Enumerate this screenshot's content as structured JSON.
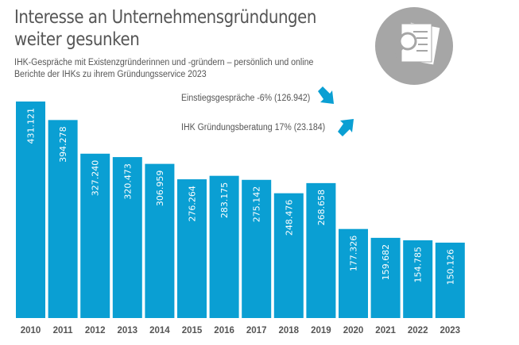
{
  "header": {
    "title_line1": "Interesse an Unternehmensgründungen",
    "title_line2": "weiter gesunken",
    "subtitle_line1": "IHK-Gespräche mit Existenzgründerinnen und -gründern – persönlich und online",
    "subtitle_line2": "Berichte der IHKs zu ihrem Gründungsservice 2023"
  },
  "annotations": [
    {
      "text": "Einstiegsgespräche -6% (126.942)",
      "trend": "down",
      "icon": "arrow-down-right-icon"
    },
    {
      "text": "IHK Gründungsberatung 17% (23.184)",
      "trend": "up",
      "icon": "arrow-up-right-icon"
    }
  ],
  "logo_icon": "document-magnifier-icon",
  "colors": {
    "bar": "#0a9fd3",
    "text": "#555555",
    "circle": "#a6a6a6"
  },
  "chart_data": {
    "type": "bar",
    "title": "",
    "xlabel": "",
    "ylabel": "",
    "grid": false,
    "categories": [
      "2010",
      "2011",
      "2012",
      "2013",
      "2014",
      "2015",
      "2016",
      "2017",
      "2018",
      "2019",
      "2020",
      "2021",
      "2022",
      "2023"
    ],
    "values": [
      431121,
      394278,
      327240,
      320473,
      306959,
      276264,
      283175,
      275142,
      248476,
      268658,
      177326,
      159682,
      154785,
      150126
    ],
    "labels": [
      "431.121",
      "394.278",
      "327.240",
      "320.473",
      "306.959",
      "276.264",
      "283.175",
      "275.142",
      "248.476",
      "268.658",
      "177.326",
      "159.682",
      "154.785",
      "150.126"
    ],
    "ylim": [
      0,
      431121
    ]
  }
}
